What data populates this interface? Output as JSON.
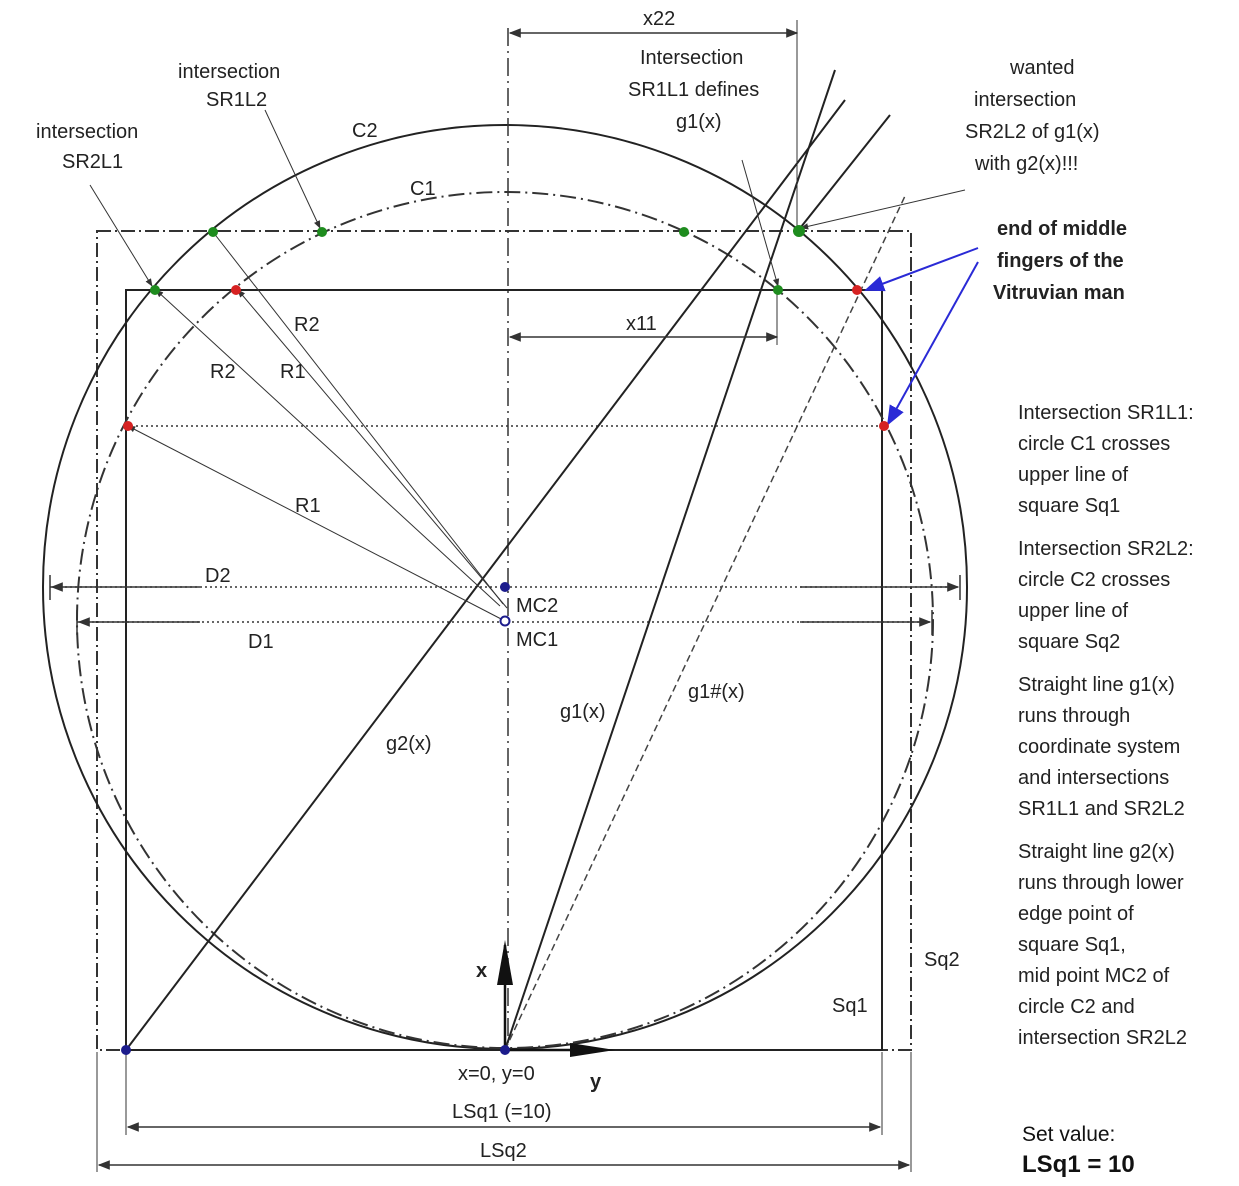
{
  "labels": {
    "x22": "x22",
    "x11": "x11",
    "inter_r1l1_1": "Intersection",
    "inter_r1l1_2": "SR1L1 defines",
    "inter_r1l1_3": "g1(x)",
    "wanted_1": "wanted",
    "wanted_2": "intersection",
    "wanted_3": "SR2L2 of g1(x)",
    "wanted_4": "with g2(x)!!!",
    "inter_r1l2_1": "intersection",
    "inter_r1l2_2": "SR1L2",
    "inter_r2l1_1": "intersection",
    "inter_r2l1_2": "SR2L1",
    "c2": "C2",
    "c1": "C1",
    "r2a": "R2",
    "r2b": "R2",
    "r1a": "R1",
    "r1b": "R1",
    "d2": "D2",
    "d1": "D1",
    "mc2": "MC2",
    "mc1": "MC1",
    "g2": "g2(x)",
    "g1": "g1(x)",
    "g1hash": "g1#(x)",
    "end_1": "end of middle",
    "end_2": "fingers of the",
    "end_3": "Vitruvian man",
    "axis_x": "x",
    "axis_y": "y",
    "origin": "x=0, y=0",
    "lsq1": "LSq1 (=10)",
    "lsq2": "LSq2",
    "sq2": "Sq2",
    "sq1": "Sq1"
  },
  "notes": [
    "Intersection SR1L1:\ncircle C1 crosses\nupper line of\nsquare Sq1",
    "Intersection SR2L2:\ncircle C2 crosses\nupper line of\nsquare Sq2",
    "Straight line g1(x)\nruns through\ncoordinate system\nand intersections\nSR1L1 and SR2L2",
    "Straight line g2(x)\nruns through lower\nedge point of\nsquare Sq1,\nmid point MC2 of\ncircle C2 and\nintersection SR2L2"
  ],
  "set_value": {
    "line1": "Set value:",
    "line2": "LSq1 = 10"
  },
  "colors": {
    "green_point": "#1e8c1e",
    "red_point": "#d62222",
    "blue_point": "#1c1c8c",
    "arrow_blue": "#2a2ad6"
  }
}
